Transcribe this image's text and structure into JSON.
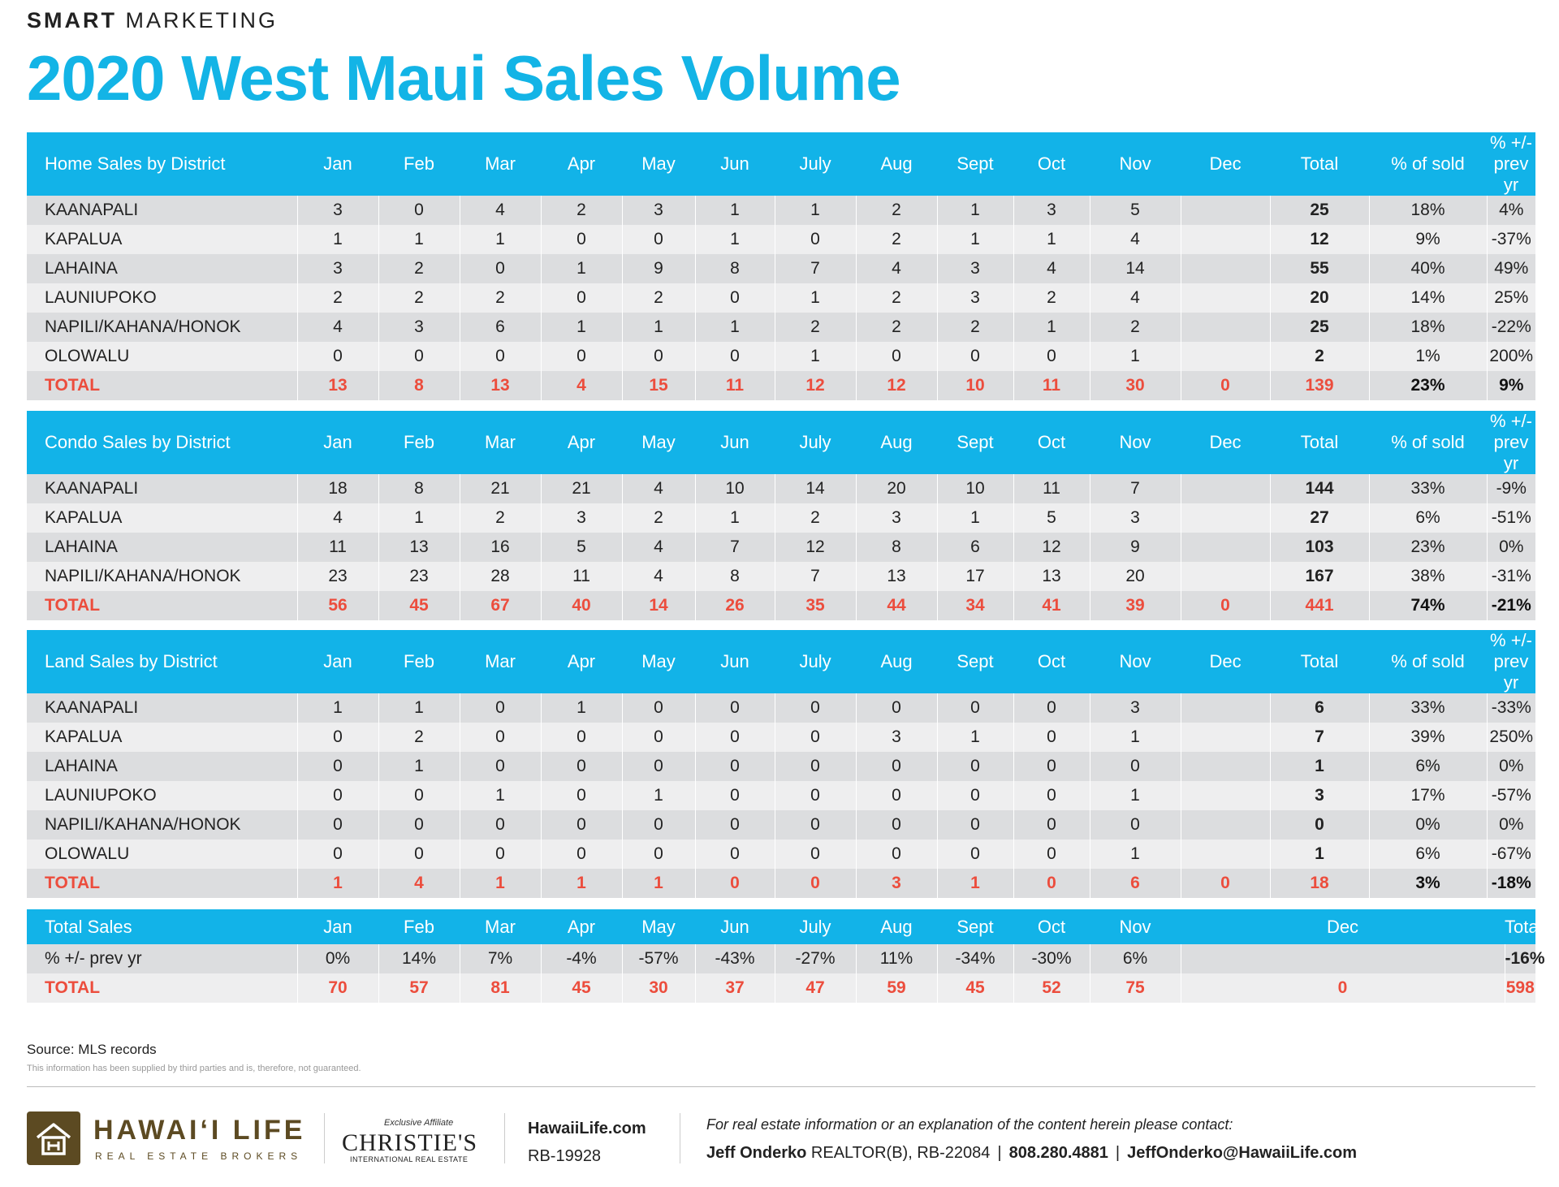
{
  "header": {
    "brand_bold": "SMART",
    "brand_rest": "MARKETING",
    "title": "2020 West Maui Sales Volume"
  },
  "columns": [
    "Jan",
    "Feb",
    "Mar",
    "Apr",
    "May",
    "Jun",
    "July",
    "Aug",
    "Sept",
    "Oct",
    "Nov",
    "Dec",
    "Total",
    "% of sold"
  ],
  "home": {
    "heading": "Home Sales by District",
    "last_col": "% +/- prev yr",
    "rows": [
      {
        "name": "KAANAPALI",
        "months": [
          "3",
          "0",
          "4",
          "2",
          "3",
          "1",
          "1",
          "2",
          "1",
          "3",
          "5",
          ""
        ],
        "total": "25",
        "pct": "18%",
        "chg": "4%"
      },
      {
        "name": "KAPALUA",
        "months": [
          "1",
          "1",
          "1",
          "0",
          "0",
          "1",
          "0",
          "2",
          "1",
          "1",
          "4",
          ""
        ],
        "total": "12",
        "pct": "9%",
        "chg": "-37%"
      },
      {
        "name": "LAHAINA",
        "months": [
          "3",
          "2",
          "0",
          "1",
          "9",
          "8",
          "7",
          "4",
          "3",
          "4",
          "14",
          ""
        ],
        "total": "55",
        "pct": "40%",
        "chg": "49%"
      },
      {
        "name": "LAUNIUPOKO",
        "months": [
          "2",
          "2",
          "2",
          "0",
          "2",
          "0",
          "1",
          "2",
          "3",
          "2",
          "4",
          ""
        ],
        "total": "20",
        "pct": "14%",
        "chg": "25%"
      },
      {
        "name": "NAPILI/KAHANA/HONOK",
        "months": [
          "4",
          "3",
          "6",
          "1",
          "1",
          "1",
          "2",
          "2",
          "2",
          "1",
          "2",
          ""
        ],
        "total": "25",
        "pct": "18%",
        "chg": "-22%"
      },
      {
        "name": "OLOWALU",
        "months": [
          "0",
          "0",
          "0",
          "0",
          "0",
          "0",
          "1",
          "0",
          "0",
          "0",
          "1",
          ""
        ],
        "total": "2",
        "pct": "1%",
        "chg": "200%"
      }
    ],
    "total": {
      "name": "TOTAL",
      "months": [
        "13",
        "8",
        "13",
        "4",
        "15",
        "11",
        "12",
        "12",
        "10",
        "11",
        "30",
        "0"
      ],
      "total": "139",
      "pct": "23%",
      "chg": "9%"
    }
  },
  "condo": {
    "heading": "Condo Sales by District",
    "last_col": "% +/- prev yr",
    "rows": [
      {
        "name": "KAANAPALI",
        "months": [
          "18",
          "8",
          "21",
          "21",
          "4",
          "10",
          "14",
          "20",
          "10",
          "11",
          "7",
          ""
        ],
        "total": "144",
        "pct": "33%",
        "chg": "-9%"
      },
      {
        "name": "KAPALUA",
        "months": [
          "4",
          "1",
          "2",
          "3",
          "2",
          "1",
          "2",
          "3",
          "1",
          "5",
          "3",
          ""
        ],
        "total": "27",
        "pct": "6%",
        "chg": "-51%"
      },
      {
        "name": "LAHAINA",
        "months": [
          "11",
          "13",
          "16",
          "5",
          "4",
          "7",
          "12",
          "8",
          "6",
          "12",
          "9",
          ""
        ],
        "total": "103",
        "pct": "23%",
        "chg": "0%"
      },
      {
        "name": "NAPILI/KAHANA/HONOK",
        "months": [
          "23",
          "23",
          "28",
          "11",
          "4",
          "8",
          "7",
          "13",
          "17",
          "13",
          "20",
          ""
        ],
        "total": "167",
        "pct": "38%",
        "chg": "-31%"
      }
    ],
    "total": {
      "name": "TOTAL",
      "months": [
        "56",
        "45",
        "67",
        "40",
        "14",
        "26",
        "35",
        "44",
        "34",
        "41",
        "39",
        "0"
      ],
      "total": "441",
      "pct": "74%",
      "chg": "-21%"
    }
  },
  "land": {
    "heading": "Land Sales by District",
    "last_col": "% +/- prev yr",
    "rows": [
      {
        "name": "KAANAPALI",
        "months": [
          "1",
          "1",
          "0",
          "1",
          "0",
          "0",
          "0",
          "0",
          "0",
          "0",
          "3",
          ""
        ],
        "total": "6",
        "pct": "33%",
        "chg": "-33%"
      },
      {
        "name": "KAPALUA",
        "months": [
          "0",
          "2",
          "0",
          "0",
          "0",
          "0",
          "0",
          "3",
          "1",
          "0",
          "1",
          ""
        ],
        "total": "7",
        "pct": "39%",
        "chg": "250%"
      },
      {
        "name": "LAHAINA",
        "months": [
          "0",
          "1",
          "0",
          "0",
          "0",
          "0",
          "0",
          "0",
          "0",
          "0",
          "0",
          ""
        ],
        "total": "1",
        "pct": "6%",
        "chg": "0%"
      },
      {
        "name": "LAUNIUPOKO",
        "months": [
          "0",
          "0",
          "1",
          "0",
          "1",
          "0",
          "0",
          "0",
          "0",
          "0",
          "1",
          ""
        ],
        "total": "3",
        "pct": "17%",
        "chg": "-57%"
      },
      {
        "name": "NAPILI/KAHANA/HONOK",
        "months": [
          "0",
          "0",
          "0",
          "0",
          "0",
          "0",
          "0",
          "0",
          "0",
          "0",
          "0",
          ""
        ],
        "total": "0",
        "pct": "0%",
        "chg": "0%"
      },
      {
        "name": "OLOWALU",
        "months": [
          "0",
          "0",
          "0",
          "0",
          "0",
          "0",
          "0",
          "0",
          "0",
          "0",
          "1",
          ""
        ],
        "total": "1",
        "pct": "6%",
        "chg": "-67%"
      }
    ],
    "total": {
      "name": "TOTAL",
      "months": [
        "1",
        "4",
        "1",
        "1",
        "1",
        "0",
        "0",
        "3",
        "1",
        "0",
        "6",
        "0"
      ],
      "total": "18",
      "pct": "3%",
      "chg": "-18%"
    }
  },
  "totals": {
    "heading": "Total Sales",
    "total_label": "Total",
    "change_row": {
      "name": "% +/- prev yr",
      "months": [
        "0%",
        "14%",
        "7%",
        "-4%",
        "-57%",
        "-43%",
        "-27%",
        "11%",
        "-34%",
        "-30%",
        "6%",
        ""
      ],
      "total": "-16%"
    },
    "total_row": {
      "name": "TOTAL",
      "months": [
        "70",
        "57",
        "81",
        "45",
        "30",
        "37",
        "47",
        "59",
        "45",
        "52",
        "75",
        "0"
      ],
      "total": "598"
    }
  },
  "notes": {
    "source": "Source: MLS records",
    "disclaimer": "This information has been supplied by third parties and is, therefore, not guaranteed."
  },
  "footer": {
    "logo_name": "HAWAI‘I LIFE",
    "logo_sub": "REAL ESTATE BROKERS",
    "affiliate_small": "Exclusive Affiliate",
    "affiliate_big": "CHRISTIE'S",
    "affiliate_sub": "INTERNATIONAL REAL ESTATE",
    "site": "HawaiiLife.com",
    "license": "RB-19928",
    "contact_intro": "For real estate information or an explanation of the content herein please contact:",
    "agent_name": "Jeff Onderko",
    "agent_title": "REALTOR(B), RB-22084",
    "phone": "808.280.4881",
    "email": "JeffOnderko@HawaiiLife.com"
  }
}
